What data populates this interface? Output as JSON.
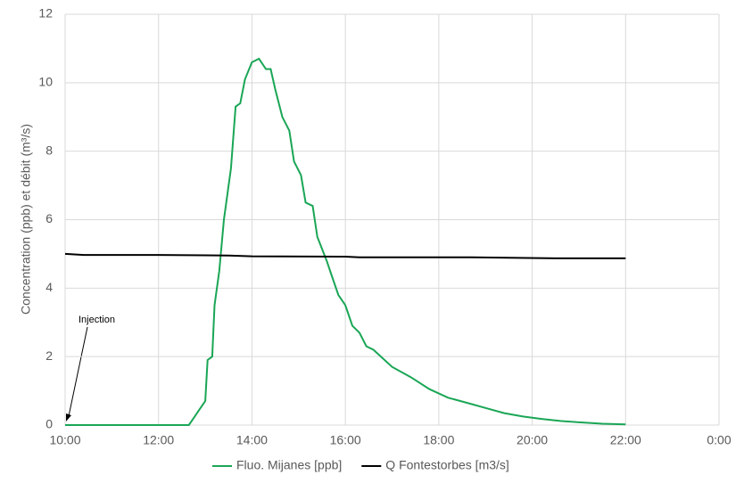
{
  "chart_data": {
    "type": "line",
    "ylabel": "Concentration (ppb) et débit (m³/s)",
    "annotation": "Injection",
    "xlim": [
      10,
      24
    ],
    "xticks": [
      {
        "value": 10,
        "label": "10:00"
      },
      {
        "value": 12,
        "label": "12:00"
      },
      {
        "value": 14,
        "label": "14:00"
      },
      {
        "value": 16,
        "label": "16:00"
      },
      {
        "value": 18,
        "label": "18:00"
      },
      {
        "value": 20,
        "label": "20:00"
      },
      {
        "value": 22,
        "label": "22:00"
      },
      {
        "value": 24,
        "label": "0:00"
      }
    ],
    "ylim": [
      0,
      12
    ],
    "yticks": [
      0,
      2,
      4,
      6,
      8,
      10,
      12
    ],
    "grid": true,
    "legend": "bottom",
    "series": [
      {
        "name": "Fluo. Mijanes [ppb]",
        "color": "#1aa656",
        "x": [
          10,
          12.65,
          12.75,
          12.85,
          13.0,
          13.05,
          13.15,
          13.2,
          13.3,
          13.4,
          13.55,
          13.65,
          13.75,
          13.85,
          14.0,
          14.15,
          14.3,
          14.4,
          14.5,
          14.65,
          14.8,
          14.9,
          15.05,
          15.15,
          15.3,
          15.4,
          15.6,
          15.7,
          15.85,
          16.0,
          16.15,
          16.3,
          16.45,
          16.6,
          17.0,
          17.4,
          17.8,
          18.2,
          18.6,
          19.0,
          19.4,
          19.8,
          20.2,
          20.6,
          21.0,
          21.5,
          22.0
        ],
        "values": [
          0,
          0,
          0.2,
          0.4,
          0.7,
          1.9,
          2.0,
          3.5,
          4.5,
          6.0,
          7.5,
          9.3,
          9.4,
          10.1,
          10.6,
          10.7,
          10.4,
          10.4,
          9.8,
          9.0,
          8.6,
          7.7,
          7.3,
          6.5,
          6.4,
          5.5,
          4.8,
          4.4,
          3.8,
          3.5,
          2.9,
          2.7,
          2.3,
          2.2,
          1.7,
          1.4,
          1.05,
          0.8,
          0.65,
          0.5,
          0.35,
          0.25,
          0.18,
          0.12,
          0.08,
          0.04,
          0.02
        ]
      },
      {
        "name": "Q Fontestorbes [m3/s]",
        "color": "#000000",
        "x": [
          10,
          10.4,
          12,
          13,
          13.5,
          14,
          16,
          16.3,
          18.7,
          20.5,
          22
        ],
        "values": [
          5.0,
          4.97,
          4.97,
          4.96,
          4.95,
          4.93,
          4.92,
          4.9,
          4.9,
          4.87,
          4.87
        ]
      }
    ]
  }
}
